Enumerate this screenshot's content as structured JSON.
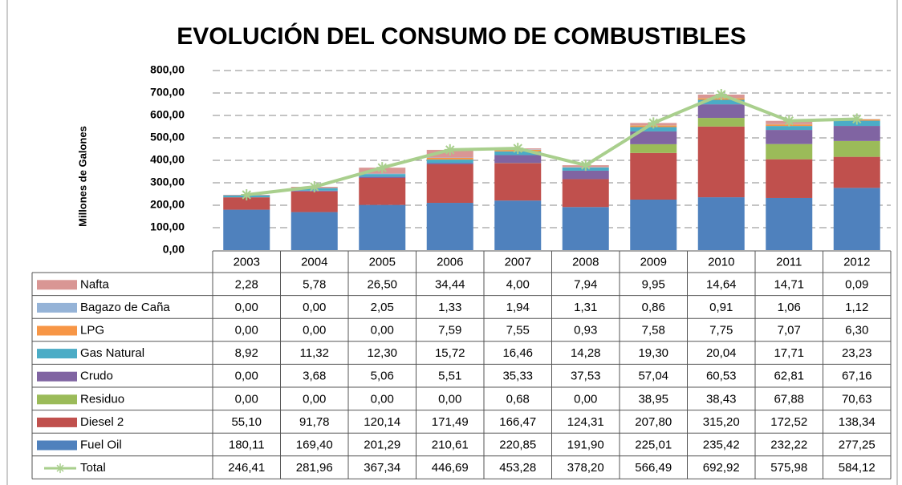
{
  "chart_data": {
    "type": "bar",
    "stacked": true,
    "title": "EVOLUCIÓN DEL CONSUMO DE COMBUSTIBLES",
    "ylabel": "Millones de Galones",
    "categories": [
      "2003",
      "2004",
      "2005",
      "2006",
      "2007",
      "2008",
      "2009",
      "2010",
      "2011",
      "2012"
    ],
    "ylim": [
      0,
      800
    ],
    "yticks": [
      {
        "value": 0,
        "label": "0,00"
      },
      {
        "value": 100,
        "label": "100,00"
      },
      {
        "value": 200,
        "label": "200,00"
      },
      {
        "value": 300,
        "label": "300,00"
      },
      {
        "value": 400,
        "label": "400,00"
      },
      {
        "value": 500,
        "label": "500,00"
      },
      {
        "value": 600,
        "label": "600,00"
      },
      {
        "value": 700,
        "label": "700,00"
      },
      {
        "value": 800,
        "label": "800,00"
      }
    ],
    "grid": true,
    "series": [
      {
        "name": "Fuel Oil",
        "color": "#4f81bd",
        "values": [
          180.11,
          169.4,
          201.29,
          210.61,
          220.85,
          191.9,
          225.01,
          235.42,
          232.22,
          277.25
        ],
        "value_labels": [
          "180,11",
          "169,40",
          "201,29",
          "210,61",
          "220,85",
          "191,90",
          "225,01",
          "235,42",
          "232,22",
          "277,25"
        ]
      },
      {
        "name": "Diesel 2",
        "color": "#c0504d",
        "values": [
          55.1,
          91.78,
          120.14,
          171.49,
          166.47,
          124.31,
          207.8,
          315.2,
          172.52,
          138.34
        ],
        "value_labels": [
          "55,10",
          "91,78",
          "120,14",
          "171,49",
          "166,47",
          "124,31",
          "207,80",
          "315,20",
          "172,52",
          "138,34"
        ]
      },
      {
        "name": "Residuo",
        "color": "#9bbb59",
        "values": [
          0,
          0,
          0,
          0,
          0.68,
          0,
          38.95,
          38.43,
          67.88,
          70.63
        ],
        "value_labels": [
          "0,00",
          "0,00",
          "0,00",
          "0,00",
          "0,68",
          "0,00",
          "38,95",
          "38,43",
          "67,88",
          "70,63"
        ]
      },
      {
        "name": "Crudo",
        "color": "#8064a2",
        "values": [
          0,
          3.68,
          5.06,
          5.51,
          35.33,
          37.53,
          57.04,
          60.53,
          62.81,
          67.16
        ],
        "value_labels": [
          "0,00",
          "3,68",
          "5,06",
          "5,51",
          "35,33",
          "37,53",
          "57,04",
          "60,53",
          "62,81",
          "67,16"
        ]
      },
      {
        "name": "Gas Natural",
        "color": "#4bacc6",
        "values": [
          8.92,
          11.32,
          12.3,
          15.72,
          16.46,
          14.28,
          19.3,
          20.04,
          17.71,
          23.23
        ],
        "value_labels": [
          "8,92",
          "11,32",
          "12,30",
          "15,72",
          "16,46",
          "14,28",
          "19,30",
          "20,04",
          "17,71",
          "23,23"
        ]
      },
      {
        "name": "LPG",
        "color": "#f79646",
        "values": [
          0,
          0,
          0,
          7.59,
          7.55,
          0.93,
          7.58,
          7.75,
          7.07,
          6.3
        ],
        "value_labels": [
          "0,00",
          "0,00",
          "0,00",
          "7,59",
          "7,55",
          "0,93",
          "7,58",
          "7,75",
          "7,07",
          "6,30"
        ]
      },
      {
        "name": "Bagazo de Caña",
        "color": "#95b3d7",
        "values": [
          0,
          0,
          2.05,
          1.33,
          1.94,
          1.31,
          0.86,
          0.91,
          1.06,
          1.12
        ],
        "value_labels": [
          "0,00",
          "0,00",
          "2,05",
          "1,33",
          "1,94",
          "1,31",
          "0,86",
          "0,91",
          "1,06",
          "1,12"
        ]
      },
      {
        "name": "Nafta",
        "color": "#d99694",
        "values": [
          2.28,
          5.78,
          26.5,
          34.44,
          4.0,
          7.94,
          9.95,
          14.64,
          14.71,
          0.09
        ],
        "value_labels": [
          "2,28",
          "5,78",
          "26,50",
          "34,44",
          "4,00",
          "7,94",
          "9,95",
          "14,64",
          "14,71",
          "0,09"
        ]
      },
      {
        "name": "Total",
        "type": "line",
        "color": "#a9cf8d",
        "values": [
          246.41,
          281.96,
          367.34,
          446.69,
          453.28,
          378.2,
          566.49,
          692.92,
          575.98,
          584.12
        ],
        "value_labels": [
          "246,41",
          "281,96",
          "367,34",
          "446,69",
          "453,28",
          "378,20",
          "566,49",
          "692,92",
          "575,98",
          "584,12"
        ]
      }
    ]
  }
}
